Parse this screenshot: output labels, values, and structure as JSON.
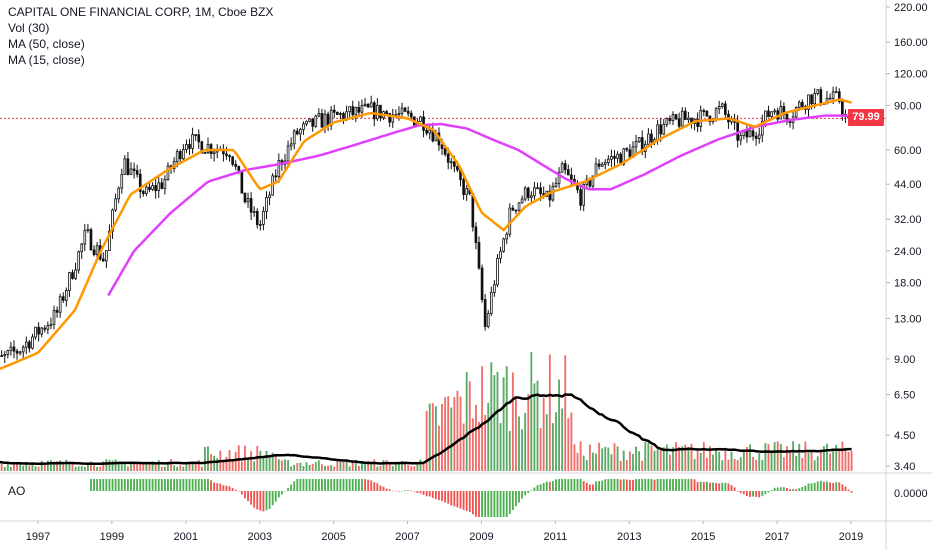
{
  "legend": {
    "title": "CAPITAL ONE FINANCIAL CORP, 1M, Cboe BZX",
    "vol": "Vol (30)",
    "ma50": "MA (50, close)",
    "ma15": "MA (15, close)"
  },
  "ao_label": "AO",
  "last_price": "79.99",
  "colors": {
    "up": "#26a69a",
    "up_volume": "#3d9a4a",
    "down_volume": "#ef5350",
    "ma15": "#ff9800",
    "ma50": "#e040fb",
    "last_price_line": "#f23645",
    "candle_body": "#111111",
    "vol_ma": "#000000",
    "ao_up": "#4caf50",
    "ao_down": "#ef5350"
  },
  "chart_data": {
    "type": "candlestick",
    "symbol": "CAPITAL ONE FINANCIAL CORP",
    "interval": "1M",
    "exchange": "Cboe BZX",
    "x_ticks": [
      "1997",
      "1999",
      "2001",
      "2003",
      "2005",
      "2007",
      "2009",
      "2011",
      "2013",
      "2015",
      "2017",
      "2019"
    ],
    "y_ticks": [
      "220.00",
      "160.00",
      "120.00",
      "90.00",
      "60.00",
      "44.00",
      "32.00",
      "24.00",
      "18.00",
      "13.00",
      "9.00",
      "6.50",
      "4.50",
      "3.40"
    ],
    "y_scale": "log",
    "ao_ticks": [
      "0.0000"
    ],
    "last_price": 79.99,
    "close_keypoints": [
      {
        "x": 1995.6,
        "y": 8.3
      },
      {
        "x": 1996.5,
        "y": 9.8
      },
      {
        "x": 1997.5,
        "y": 13.5
      },
      {
        "x": 1998.3,
        "y": 28
      },
      {
        "x": 1998.8,
        "y": 22
      },
      {
        "x": 1999.3,
        "y": 55
      },
      {
        "x": 1999.9,
        "y": 40
      },
      {
        "x": 2000.4,
        "y": 45
      },
      {
        "x": 2001.0,
        "y": 66
      },
      {
        "x": 2001.6,
        "y": 62
      },
      {
        "x": 2002.2,
        "y": 60
      },
      {
        "x": 2002.6,
        "y": 38
      },
      {
        "x": 2003.0,
        "y": 30
      },
      {
        "x": 2003.5,
        "y": 52
      },
      {
        "x": 2004.0,
        "y": 70
      },
      {
        "x": 2004.6,
        "y": 78
      },
      {
        "x": 2005.3,
        "y": 83
      },
      {
        "x": 2006.0,
        "y": 86
      },
      {
        "x": 2006.8,
        "y": 82
      },
      {
        "x": 2007.4,
        "y": 79
      },
      {
        "x": 2007.9,
        "y": 65
      },
      {
        "x": 2008.3,
        "y": 48
      },
      {
        "x": 2008.7,
        "y": 38
      },
      {
        "x": 2009.1,
        "y": 12
      },
      {
        "x": 2009.4,
        "y": 20
      },
      {
        "x": 2009.8,
        "y": 35
      },
      {
        "x": 2010.3,
        "y": 42
      },
      {
        "x": 2010.8,
        "y": 38
      },
      {
        "x": 2011.2,
        "y": 50
      },
      {
        "x": 2011.7,
        "y": 39
      },
      {
        "x": 2012.2,
        "y": 54
      },
      {
        "x": 2012.8,
        "y": 57
      },
      {
        "x": 2013.3,
        "y": 63
      },
      {
        "x": 2013.8,
        "y": 73
      },
      {
        "x": 2014.4,
        "y": 79
      },
      {
        "x": 2015.0,
        "y": 81
      },
      {
        "x": 2015.5,
        "y": 87
      },
      {
        "x": 2016.0,
        "y": 66
      },
      {
        "x": 2016.4,
        "y": 71
      },
      {
        "x": 2016.9,
        "y": 88
      },
      {
        "x": 2017.3,
        "y": 82
      },
      {
        "x": 2017.9,
        "y": 98
      },
      {
        "x": 2018.3,
        "y": 96
      },
      {
        "x": 2018.7,
        "y": 95
      },
      {
        "x": 2018.9,
        "y": 75
      },
      {
        "x": 2019.05,
        "y": 79.99
      }
    ],
    "ma15_keypoints": [
      {
        "x": 1995.6,
        "y": 7.8
      },
      {
        "x": 1997.0,
        "y": 9.5
      },
      {
        "x": 1998.0,
        "y": 14
      },
      {
        "x": 1998.7,
        "y": 24
      },
      {
        "x": 1999.5,
        "y": 40
      },
      {
        "x": 2000.5,
        "y": 50
      },
      {
        "x": 2001.5,
        "y": 60
      },
      {
        "x": 2002.3,
        "y": 60
      },
      {
        "x": 2003.0,
        "y": 42
      },
      {
        "x": 2003.5,
        "y": 45
      },
      {
        "x": 2004.2,
        "y": 65
      },
      {
        "x": 2005.0,
        "y": 77
      },
      {
        "x": 2006.0,
        "y": 84
      },
      {
        "x": 2007.0,
        "y": 80
      },
      {
        "x": 2007.7,
        "y": 72
      },
      {
        "x": 2008.4,
        "y": 52
      },
      {
        "x": 2009.0,
        "y": 34
      },
      {
        "x": 2009.6,
        "y": 29
      },
      {
        "x": 2010.2,
        "y": 36
      },
      {
        "x": 2010.9,
        "y": 41
      },
      {
        "x": 2011.8,
        "y": 45
      },
      {
        "x": 2012.8,
        "y": 53
      },
      {
        "x": 2013.8,
        "y": 66
      },
      {
        "x": 2014.8,
        "y": 78
      },
      {
        "x": 2015.7,
        "y": 80
      },
      {
        "x": 2016.4,
        "y": 74
      },
      {
        "x": 2017.2,
        "y": 84
      },
      {
        "x": 2017.9,
        "y": 89
      },
      {
        "x": 2018.7,
        "y": 95
      },
      {
        "x": 2019.05,
        "y": 92
      }
    ],
    "ma50_keypoints": [
      {
        "x": 1998.9,
        "y": 16
      },
      {
        "x": 1999.6,
        "y": 24
      },
      {
        "x": 2000.6,
        "y": 34
      },
      {
        "x": 2001.6,
        "y": 45
      },
      {
        "x": 2002.6,
        "y": 50
      },
      {
        "x": 2003.6,
        "y": 53
      },
      {
        "x": 2004.6,
        "y": 57
      },
      {
        "x": 2005.6,
        "y": 63
      },
      {
        "x": 2006.6,
        "y": 70
      },
      {
        "x": 2007.3,
        "y": 75
      },
      {
        "x": 2007.9,
        "y": 76
      },
      {
        "x": 2008.6,
        "y": 73
      },
      {
        "x": 2009.3,
        "y": 66
      },
      {
        "x": 2010.0,
        "y": 60
      },
      {
        "x": 2010.6,
        "y": 53
      },
      {
        "x": 2011.3,
        "y": 46
      },
      {
        "x": 2011.9,
        "y": 42
      },
      {
        "x": 2012.5,
        "y": 42
      },
      {
        "x": 2013.4,
        "y": 48
      },
      {
        "x": 2014.4,
        "y": 57
      },
      {
        "x": 2015.4,
        "y": 66
      },
      {
        "x": 2016.4,
        "y": 74
      },
      {
        "x": 2017.4,
        "y": 79
      },
      {
        "x": 2018.3,
        "y": 82
      },
      {
        "x": 2019.05,
        "y": 82
      }
    ]
  }
}
